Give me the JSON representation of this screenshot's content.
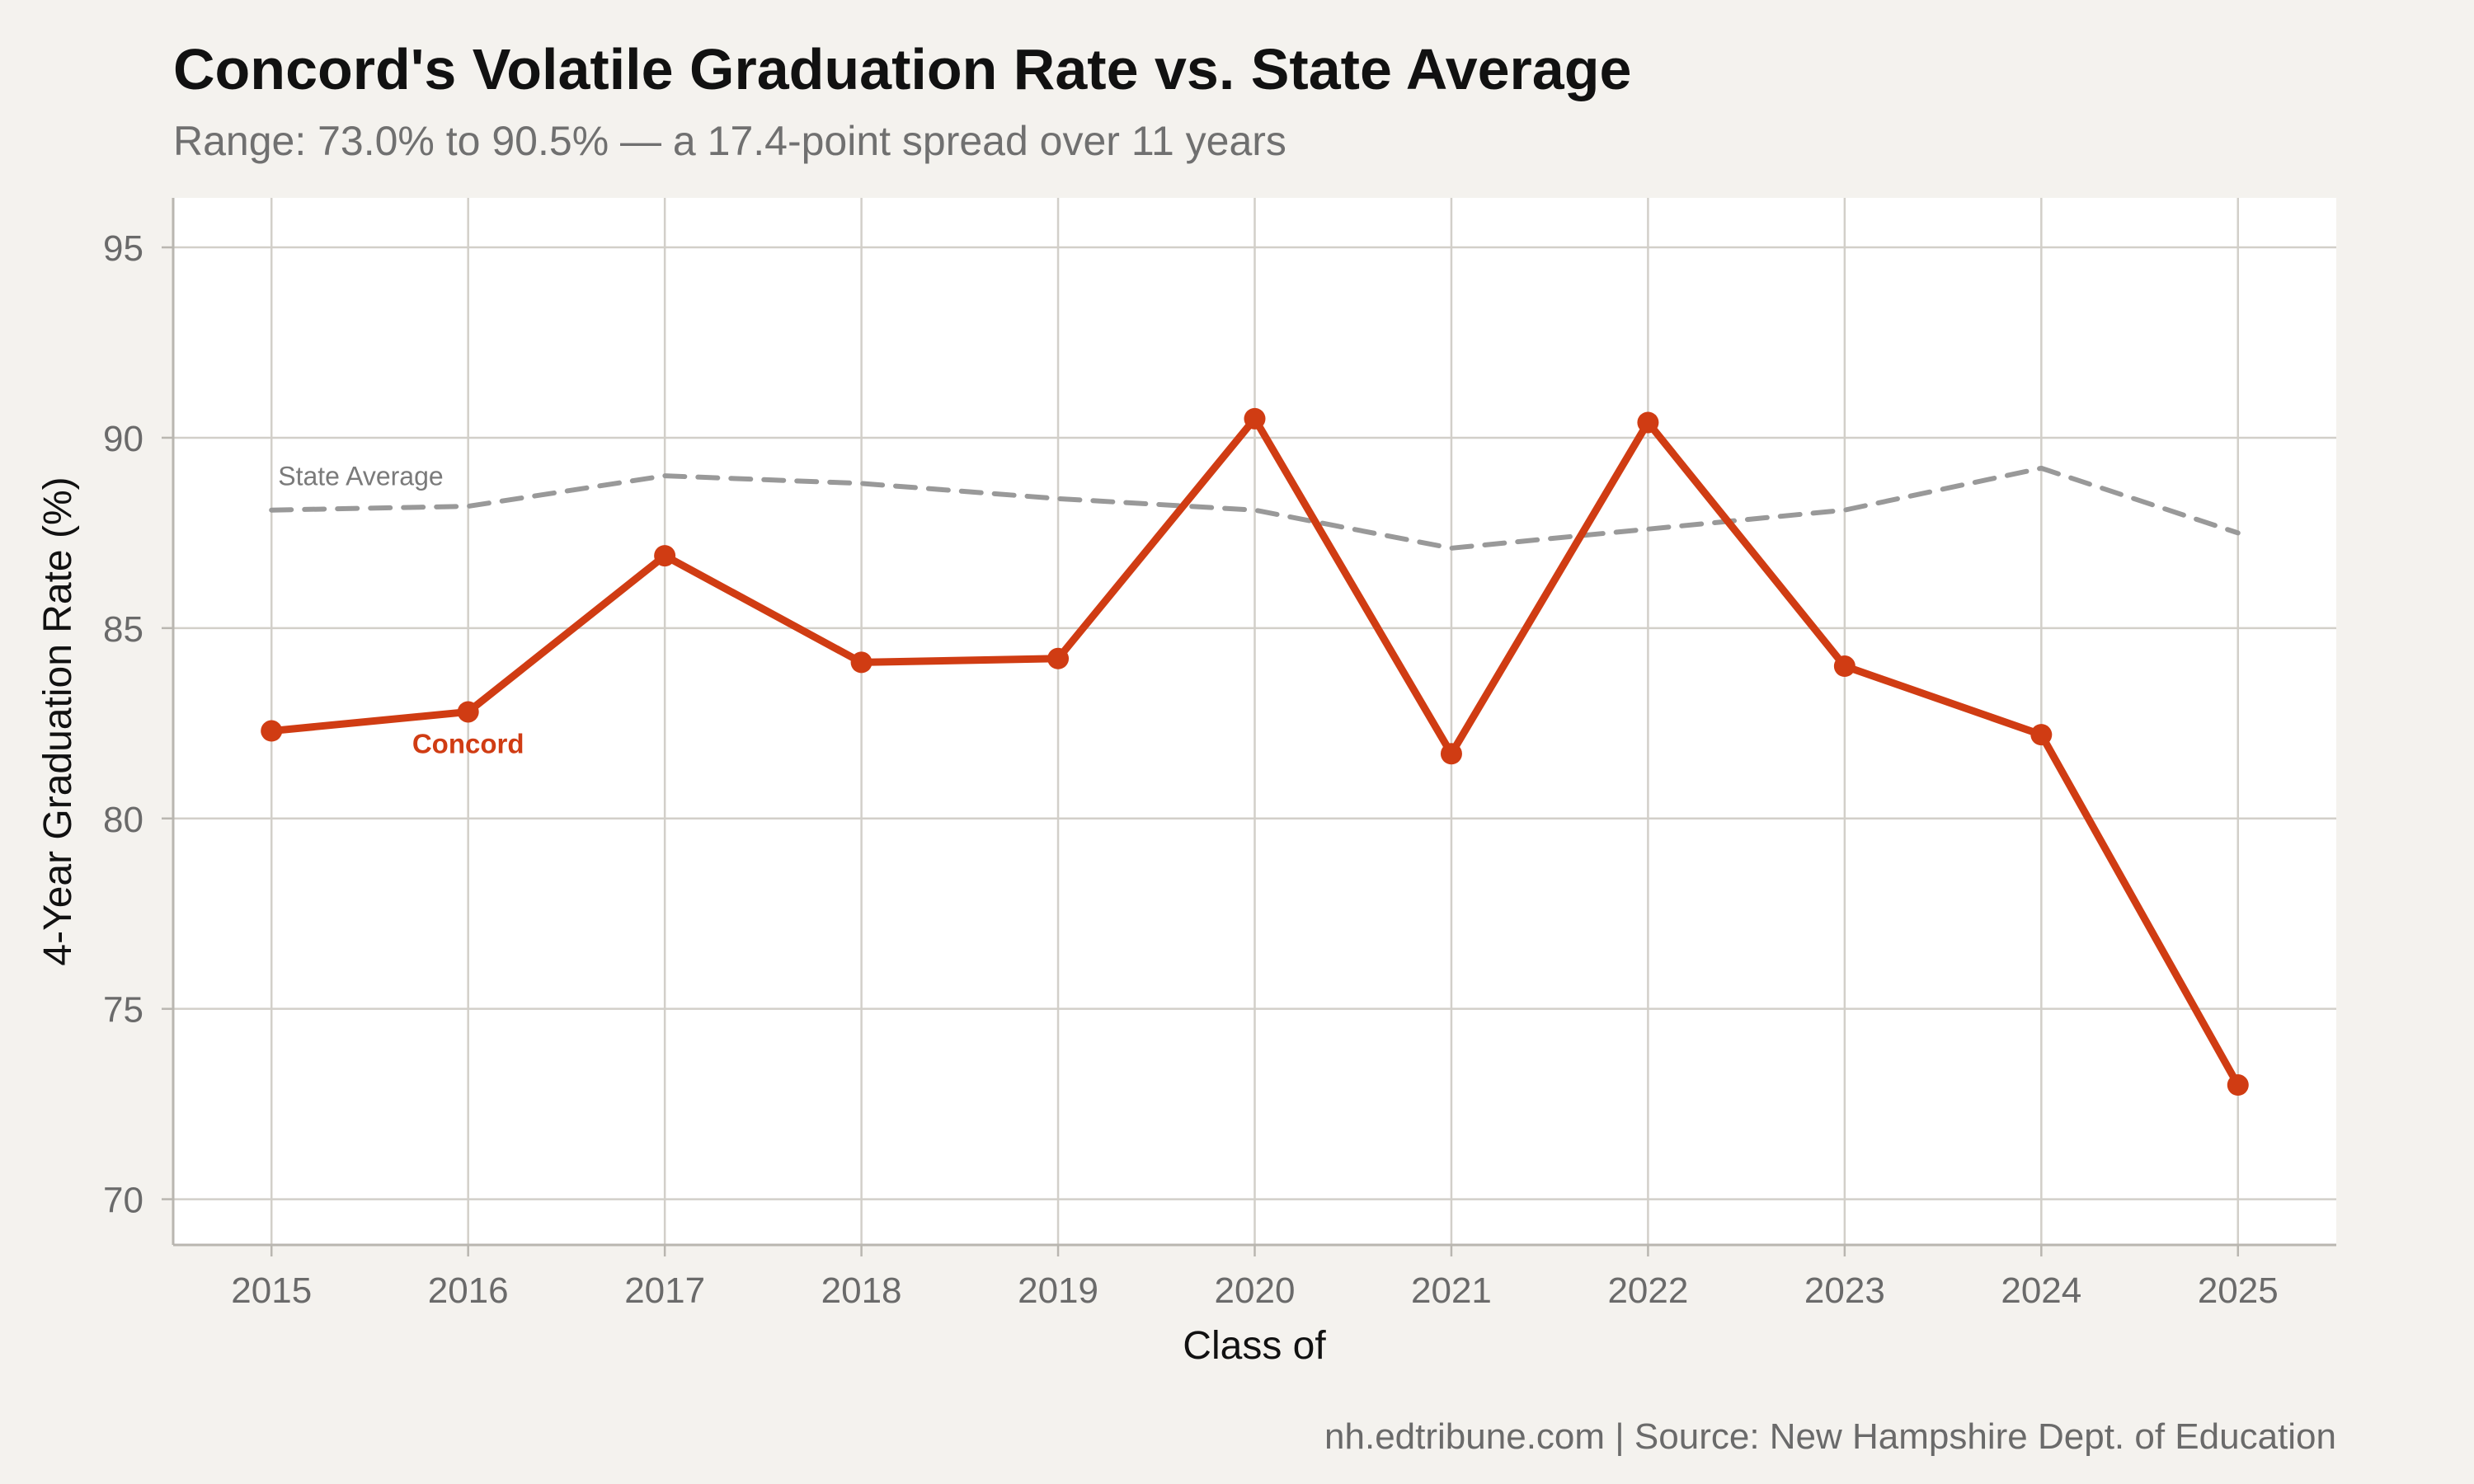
{
  "title": "Concord's Volatile Graduation Rate vs. State Average",
  "subtitle": "Range: 73.0% to 90.5% — a 17.4-point spread over 11 years",
  "caption": "nh.edtribune.com | Source: New Hampshire Dept. of Education",
  "chart_data": {
    "type": "line",
    "xlabel": "Class of",
    "ylabel": "4-Year Graduation Rate (%)",
    "x": [
      2015,
      2016,
      2017,
      2018,
      2019,
      2020,
      2021,
      2022,
      2023,
      2024,
      2025
    ],
    "xticks": [
      "2015",
      "2016",
      "2017",
      "2018",
      "2019",
      "2020",
      "2021",
      "2022",
      "2023",
      "2024",
      "2025"
    ],
    "ylim": [
      68.8,
      96.3
    ],
    "yticks": [
      70,
      75,
      80,
      85,
      90,
      95
    ],
    "grid": true,
    "series": [
      {
        "name": "State Average",
        "style": "dashed",
        "color": "#999999",
        "label_near": "2015",
        "values": [
          88.1,
          88.2,
          89.0,
          88.8,
          88.4,
          88.1,
          87.1,
          87.6,
          88.1,
          89.2,
          87.5
        ]
      },
      {
        "name": "Concord",
        "style": "solid",
        "color": "#d03c13",
        "label_near": "2016",
        "values": [
          82.3,
          82.8,
          86.9,
          84.1,
          84.2,
          90.5,
          81.7,
          90.4,
          84.0,
          82.2,
          73.0
        ]
      }
    ]
  }
}
